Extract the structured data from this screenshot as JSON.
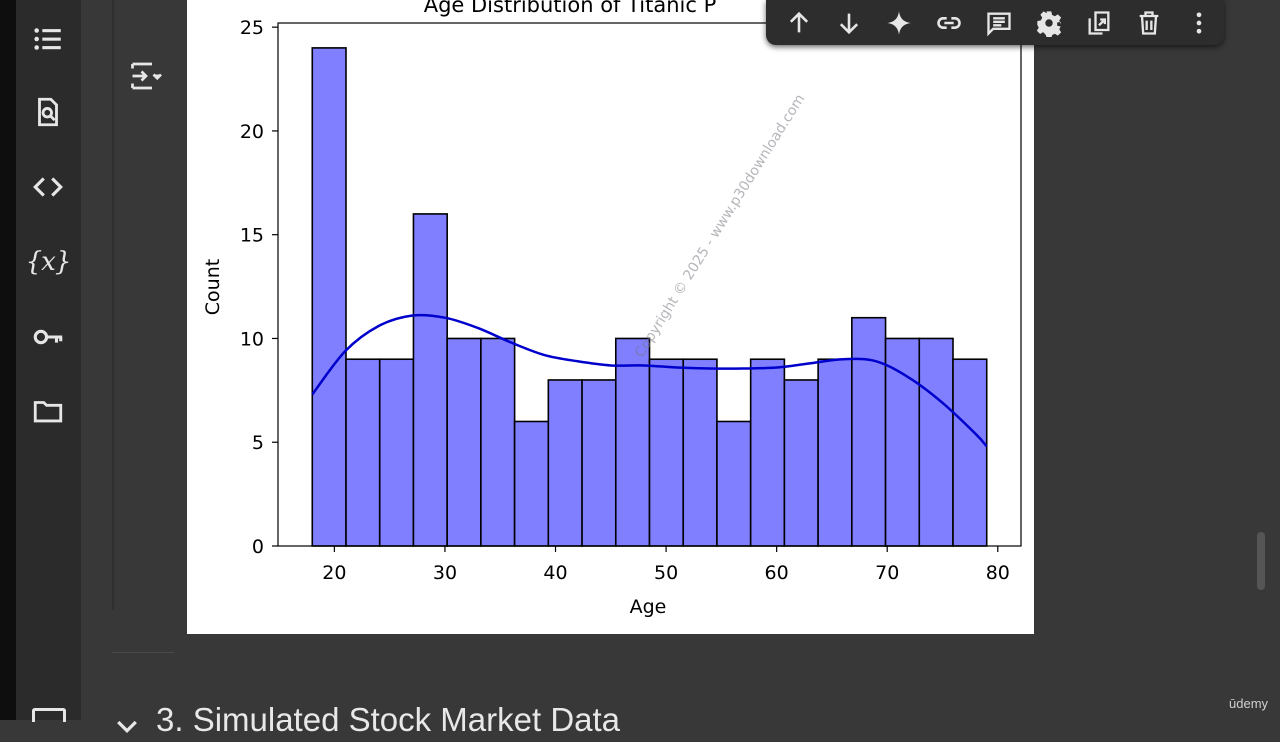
{
  "sidebar": {
    "items": [
      {
        "name": "table-of-contents-icon"
      },
      {
        "name": "find-replace-icon"
      },
      {
        "name": "code-snippets-icon"
      },
      {
        "name": "variables-icon",
        "text": "{x}"
      },
      {
        "name": "secrets-key-icon"
      },
      {
        "name": "files-folder-icon"
      }
    ]
  },
  "toolbar": {
    "buttons": [
      {
        "name": "move-up-icon"
      },
      {
        "name": "move-down-icon"
      },
      {
        "name": "gemini-sparkle-icon"
      },
      {
        "name": "link-icon"
      },
      {
        "name": "comment-icon"
      },
      {
        "name": "settings-gear-icon"
      },
      {
        "name": "mirror-cell-icon"
      },
      {
        "name": "delete-trash-icon"
      },
      {
        "name": "more-vert-icon"
      }
    ]
  },
  "chart_data": {
    "type": "bar",
    "title": "Age Distribution of Titanic P",
    "xlabel": "Age",
    "ylabel": "Count",
    "xlim": [
      14.9,
      82.1
    ],
    "ylim": [
      0,
      25.2
    ],
    "xticks": [
      20,
      30,
      40,
      50,
      60,
      70,
      80
    ],
    "yticks": [
      0,
      5,
      10,
      15,
      20,
      25
    ],
    "bin_width": 3.05,
    "x": [
      18,
      21.05,
      24.1,
      27.15,
      30.2,
      33.25,
      36.3,
      39.35,
      42.4,
      45.45,
      48.5,
      51.55,
      54.6,
      57.65,
      60.7,
      63.75,
      66.8,
      69.85,
      72.9,
      75.95
    ],
    "values": [
      24,
      9,
      9,
      16,
      10,
      10,
      6,
      8,
      8,
      10,
      9,
      9,
      6,
      9,
      8,
      9,
      11,
      10,
      10,
      9
    ],
    "kde": {
      "x": [
        18,
        21,
        24,
        27,
        30,
        33,
        36,
        39,
        42,
        45,
        48,
        51,
        54,
        57,
        60,
        63,
        66,
        69,
        72,
        75,
        78,
        79
      ],
      "y": [
        7.3,
        9.4,
        10.6,
        11.1,
        11.0,
        10.5,
        9.8,
        9.2,
        8.9,
        8.7,
        8.7,
        8.6,
        8.55,
        8.55,
        8.6,
        8.8,
        9.0,
        8.9,
        8.1,
        6.9,
        5.4,
        4.8
      ]
    },
    "bar_color": "#7f7fff",
    "bar_edge_color": "#000000",
    "kde_color": "#0000cc",
    "grid": false
  },
  "watermark": "Copyright © 2025 - www.p30download.com",
  "next_section": {
    "title": "3. Simulated Stock Market Data"
  },
  "logo": "ūdemy",
  "colors": {
    "background": "#383838",
    "rail": "#2b2b2b",
    "toolbar": "#2d2d2d",
    "icon": "#e6e6e6"
  }
}
